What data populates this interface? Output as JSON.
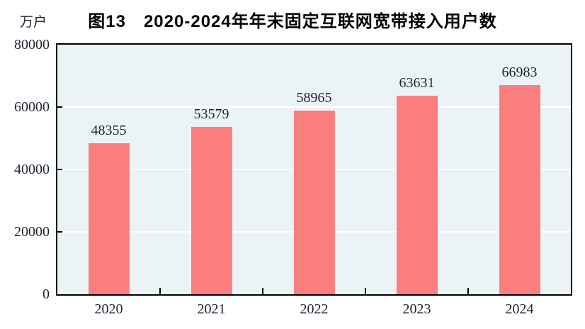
{
  "figure": {
    "title": "图13　2020-2024年年末固定互联网宽带接入用户数",
    "unit_label": "万户"
  },
  "chart_data": {
    "type": "bar",
    "title": "图13　2020-2024年年末固定互联网宽带接入用户数",
    "ylabel": "万户",
    "xlabel": "",
    "categories": [
      "2020",
      "2021",
      "2022",
      "2023",
      "2024"
    ],
    "values": [
      48355,
      53579,
      58965,
      63631,
      66983
    ],
    "data_labels_visible": true,
    "ylim": [
      0,
      80000
    ],
    "yticks": [
      0,
      20000,
      40000,
      60000,
      80000
    ],
    "grid": "horizontal",
    "legend": "none"
  },
  "colors": {
    "bar_fill": "#FB7E7E",
    "plot_background": "#EBF3F6",
    "grid_line": "#FFFFFF",
    "axis_frame": "#000000",
    "text": "#1C2430",
    "page_background": "#FFFFFF"
  }
}
